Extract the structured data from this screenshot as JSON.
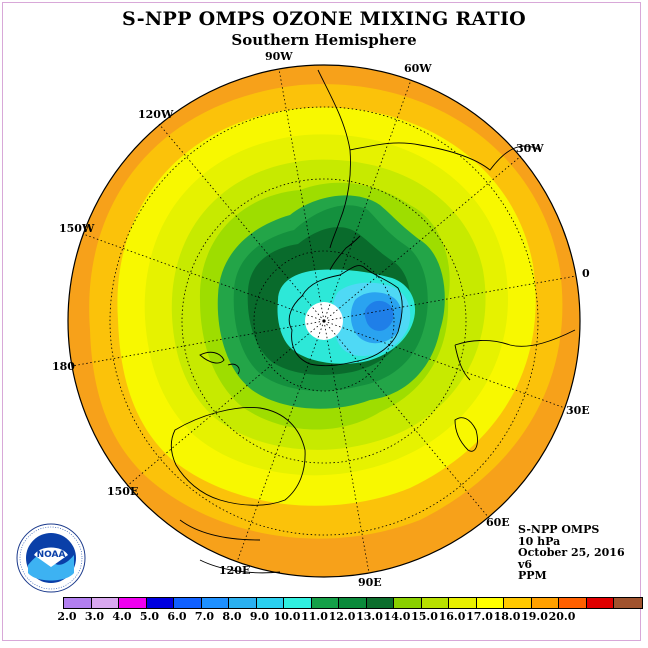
{
  "title": "S-NPP OMPS OZONE MIXING RATIO",
  "subtitle": "Southern Hemisphere",
  "longitude_labels": [
    "90W",
    "60W",
    "30W",
    "0",
    "30E",
    "60E",
    "90E",
    "120E",
    "150E",
    "180",
    "150W",
    "120W"
  ],
  "info": {
    "instrument": "S-NPP OMPS",
    "level": "10 hPa",
    "date": "October 25, 2016",
    "version": "v6",
    "units": "PPM"
  },
  "colorbar": {
    "ticks": [
      "2.0",
      "3.0",
      "4.0",
      "5.0",
      "6.0",
      "7.0",
      "8.0",
      "9.0",
      "10.0",
      "11.0",
      "12.0",
      "13.0",
      "14.0",
      "15.0",
      "16.0",
      "17.0",
      "18.0",
      "19.0",
      "20.0"
    ],
    "colors": [
      "#b27ff0",
      "#d9a8f0",
      "#f000f0",
      "#0000e0",
      "#1060ff",
      "#1e90ff",
      "#2ab0f0",
      "#2ad0f0",
      "#30f0e0",
      "#14a048",
      "#0a8a3a",
      "#0c6e2c",
      "#8ad000",
      "#b8e000",
      "#e8f000",
      "#ffff00",
      "#ffc800",
      "#ffa000",
      "#ff6000",
      "#e00000",
      "#a0522d"
    ]
  },
  "map_colors": {
    "outer": "#f7a11a",
    "orange": "#fbc20a",
    "yellow": "#f8f800",
    "lightyellow": "#e6f200",
    "yellowgreen": "#c7ea00",
    "lightgreen": "#9edd00",
    "green": "#23a548",
    "midgreen": "#14903e",
    "darkgreen": "#096b2c",
    "aqua": "#2de8d8",
    "cyan": "#4fd9f5",
    "blue": "#2aa3f0",
    "deepblue": "#1f7fe8"
  },
  "logo_text": "NOAA"
}
